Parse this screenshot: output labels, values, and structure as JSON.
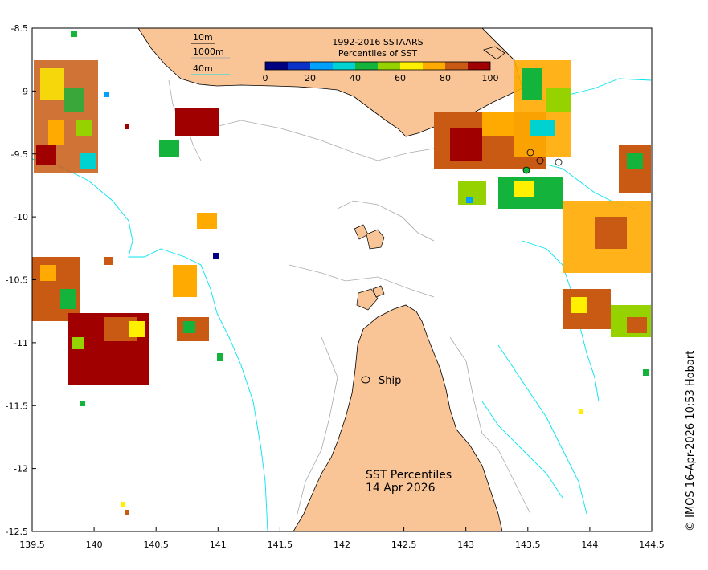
{
  "map": {
    "lon_range": [
      139.5,
      144.5
    ],
    "lat_range": [
      -12.5,
      -8.5
    ],
    "lon_ticks": [
      "139.5",
      "140",
      "140.5",
      "141",
      "141.5",
      "142",
      "142.5",
      "143",
      "143.5",
      "144",
      "144.5"
    ],
    "lat_ticks": [
      "-8.5",
      "-9",
      "-9.5",
      "-10",
      "-10.5",
      "-11",
      "-11.5",
      "-12",
      "-12.5"
    ],
    "colors": {
      "land": "#f9c597",
      "contour_10m": "#000000",
      "contour_1000m": "#aaaaaa",
      "contour_40m": "#00e5f0"
    }
  },
  "contour_legend": {
    "items": [
      "10m",
      "1000m",
      "40m"
    ]
  },
  "colorbar": {
    "title_line1": "1992-2016 SSTAARS",
    "title_line2": "Percentiles of SST",
    "tick_labels": [
      "0",
      "20",
      "40",
      "60",
      "80",
      "100"
    ],
    "colors": [
      "#000080",
      "#0a32c8",
      "#00a0ff",
      "#00d2d2",
      "#14b43c",
      "#96d200",
      "#fff000",
      "#ffaa00",
      "#c85a14",
      "#a00000"
    ]
  },
  "labels": {
    "ship": "Ship",
    "product_line1": "SST Percentiles",
    "product_line2": "14 Apr 2026"
  },
  "credit": "© IMOS 16-Apr-2026 10:53 Hobart"
}
